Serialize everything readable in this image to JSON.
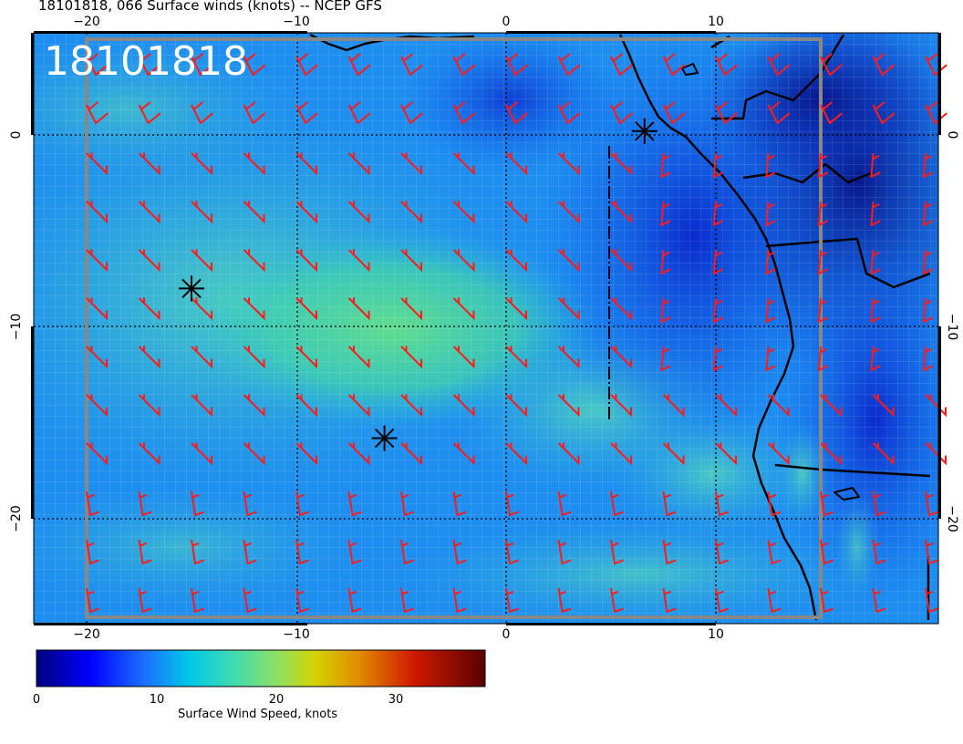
{
  "header": {
    "title": "18101818, 066 Surface winds (knots) -- NCEP GFS",
    "stamp": "18101818"
  },
  "axes": {
    "lon_ticks": [
      {
        "value": -20,
        "label": "−20"
      },
      {
        "value": -10,
        "label": "−10"
      },
      {
        "value": 0,
        "label": "0"
      },
      {
        "value": 10,
        "label": "10"
      }
    ],
    "lat_ticks": [
      {
        "value": 0,
        "label": "0"
      },
      {
        "value": -10,
        "label": "−10"
      },
      {
        "value": -20,
        "label": "−20"
      }
    ],
    "lon_range": [
      -22.5,
      20.2
    ],
    "lat_range": [
      -25.6,
      5.2
    ]
  },
  "colorbar": {
    "label": "Surface Wind Speed, knots",
    "ticks": [
      "0",
      "10",
      "20",
      "30"
    ],
    "range": [
      0,
      37
    ],
    "colors": [
      "#00007f",
      "#0000ff",
      "#1b6fff",
      "#00c8e6",
      "#55e0a0",
      "#8fe070",
      "#d4d400",
      "#e08a00",
      "#d01a00",
      "#5a0000"
    ]
  },
  "markers": [
    {
      "name": "station-a",
      "lon": -15.0,
      "lat": -8.0
    },
    {
      "name": "station-b",
      "lon": -5.8,
      "lat": -15.8
    },
    {
      "name": "station-c",
      "lon": 6.6,
      "lat": 0.2
    }
  ],
  "colors": {
    "barb": "#ff1a1a",
    "coast": "#000000",
    "grid": "#000000"
  }
}
